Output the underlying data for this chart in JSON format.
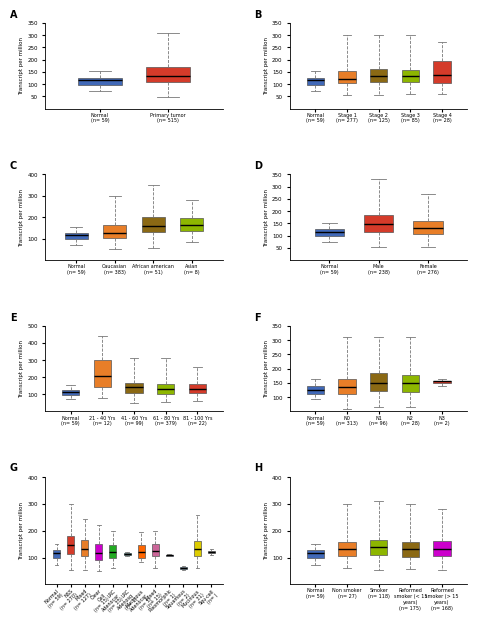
{
  "panels": {
    "A": {
      "title": "A",
      "ylabel": "Transcript per million",
      "ylim": [
        0,
        350
      ],
      "yticks": [
        50,
        100,
        150,
        200,
        250,
        300,
        350
      ],
      "groups": [
        {
          "label": "Normal\n(n= 59)",
          "color": "#4169B8",
          "whislo": 72,
          "q1": 98,
          "med": 115,
          "q3": 127,
          "whishi": 152
        },
        {
          "label": "Primary tumor\n(n= 515)",
          "color": "#D43B2A",
          "whislo": 47,
          "q1": 107,
          "med": 133,
          "q3": 168,
          "whishi": 310
        }
      ]
    },
    "B": {
      "title": "B",
      "ylabel": "Transcript per million",
      "ylim": [
        0,
        350
      ],
      "yticks": [
        50,
        100,
        150,
        200,
        250,
        300,
        350
      ],
      "groups": [
        {
          "label": "Normal\n(n= 59)",
          "color": "#4169B8",
          "whislo": 72,
          "q1": 98,
          "med": 115,
          "q3": 127,
          "whishi": 152
        },
        {
          "label": "Stage 1\n(n= 277)",
          "color": "#E87E28",
          "whislo": 55,
          "q1": 105,
          "med": 123,
          "q3": 155,
          "whishi": 300
        },
        {
          "label": "Stage 2\n(n= 125)",
          "color": "#8B6914",
          "whislo": 55,
          "q1": 107,
          "med": 133,
          "q3": 163,
          "whishi": 300
        },
        {
          "label": "Stage 3\n(n= 85)",
          "color": "#8DB600",
          "whislo": 58,
          "q1": 107,
          "med": 132,
          "q3": 158,
          "whishi": 300
        },
        {
          "label": "Stage 4\n(n= 28)",
          "color": "#D43B2A",
          "whislo": 60,
          "q1": 103,
          "med": 136,
          "q3": 195,
          "whishi": 270
        }
      ]
    },
    "C": {
      "title": "C",
      "ylabel": "Transcript per million",
      "ylim": [
        0,
        400
      ],
      "yticks": [
        100,
        200,
        300,
        400
      ],
      "groups": [
        {
          "label": "Normal\n(n= 59)",
          "color": "#4169B8",
          "whislo": 72,
          "q1": 98,
          "med": 115,
          "q3": 127,
          "whishi": 152
        },
        {
          "label": "Caucasian\n(n= 383)",
          "color": "#E87E28",
          "whislo": 52,
          "q1": 105,
          "med": 128,
          "q3": 162,
          "whishi": 300
        },
        {
          "label": "African american\n(n= 51)",
          "color": "#8B6914",
          "whislo": 58,
          "q1": 133,
          "med": 160,
          "q3": 200,
          "whishi": 350
        },
        {
          "label": "Asian\n(n= 8)",
          "color": "#8DB600",
          "whislo": 82,
          "q1": 135,
          "med": 162,
          "q3": 195,
          "whishi": 280
        }
      ]
    },
    "D": {
      "title": "D",
      "ylabel": "Transcript per million",
      "ylim": [
        0,
        350
      ],
      "yticks": [
        50,
        100,
        150,
        200,
        250,
        300,
        350
      ],
      "groups": [
        {
          "label": "Normal\n(n= 59)",
          "color": "#4169B8",
          "whislo": 72,
          "q1": 98,
          "med": 115,
          "q3": 127,
          "whishi": 152
        },
        {
          "label": "Male\n(n= 238)",
          "color": "#D43B2A",
          "whislo": 52,
          "q1": 115,
          "med": 148,
          "q3": 183,
          "whishi": 330
        },
        {
          "label": "Female\n(n= 276)",
          "color": "#E87E28",
          "whislo": 52,
          "q1": 107,
          "med": 131,
          "q3": 160,
          "whishi": 270
        }
      ]
    },
    "E": {
      "title": "E",
      "ylabel": "Transcript per million",
      "ylim": [
        0,
        500
      ],
      "yticks": [
        100,
        200,
        300,
        400,
        500
      ],
      "groups": [
        {
          "label": "Normal\n(n= 59)",
          "color": "#4169B8",
          "whislo": 72,
          "q1": 98,
          "med": 115,
          "q3": 127,
          "whishi": 152
        },
        {
          "label": "21 - 40 Yrs\n(n= 12)",
          "color": "#E87E28",
          "whislo": 80,
          "q1": 145,
          "med": 208,
          "q3": 300,
          "whishi": 440
        },
        {
          "label": "41 - 60 Yrs\n(n= 99)",
          "color": "#8B6914",
          "whislo": 52,
          "q1": 107,
          "med": 140,
          "q3": 165,
          "whishi": 310
        },
        {
          "label": "61 - 80 Yrs\n(n= 379)",
          "color": "#8DB600",
          "whislo": 55,
          "q1": 103,
          "med": 130,
          "q3": 158,
          "whishi": 310
        },
        {
          "label": "81 - 100 Yrs\n(n= 22)",
          "color": "#D43B2A",
          "whislo": 62,
          "q1": 107,
          "med": 133,
          "q3": 163,
          "whishi": 260
        }
      ]
    },
    "F": {
      "title": "F",
      "ylabel": "Transcript per million",
      "ylim": [
        50,
        350
      ],
      "yticks": [
        100,
        150,
        200,
        250,
        300,
        350
      ],
      "groups": [
        {
          "label": "Normal\n(n= 59)",
          "color": "#4169B8",
          "whislo": 93,
          "q1": 112,
          "med": 125,
          "q3": 140,
          "whishi": 165
        },
        {
          "label": "N0\n(n= 313)",
          "color": "#E87E28",
          "whislo": 60,
          "q1": 110,
          "med": 135,
          "q3": 165,
          "whishi": 310
        },
        {
          "label": "N1\n(n= 96)",
          "color": "#8B6914",
          "whislo": 65,
          "q1": 120,
          "med": 150,
          "q3": 185,
          "whishi": 310
        },
        {
          "label": "N2\n(n= 28)",
          "color": "#8DB600",
          "whislo": 65,
          "q1": 118,
          "med": 148,
          "q3": 178,
          "whishi": 310
        },
        {
          "label": "N3\n(n= 2)",
          "color": "#D43B2A",
          "whislo": 140,
          "q1": 148,
          "med": 155,
          "q3": 158,
          "whishi": 163
        }
      ]
    },
    "G": {
      "title": "G",
      "ylabel": "Transcript per million",
      "ylim": [
        0,
        400
      ],
      "yticks": [
        100,
        200,
        300,
        400
      ],
      "rotate_xlabels": true,
      "groups": [
        {
          "label": "Normal\n(n= 59)",
          "color": "#4169B8",
          "whislo": 72,
          "q1": 98,
          "med": 115,
          "q3": 127,
          "whishi": 152
        },
        {
          "label": "NSS\n(n= 270)",
          "color": "#D43B2A",
          "whislo": 52,
          "q1": 113,
          "med": 145,
          "q3": 182,
          "whishi": 300
        },
        {
          "label": "Mixed\n(n= 127)",
          "color": "#E87E28",
          "whislo": 55,
          "q1": 107,
          "med": 132,
          "q3": 165,
          "whishi": 245
        },
        {
          "label": "Clear\nCell\n(n= 15)",
          "color": "#CC00CC",
          "whislo": 50,
          "q1": 92,
          "med": 118,
          "q3": 150,
          "whishi": 220
        },
        {
          "label": "LRC\nAdenocar\n(n= 35)",
          "color": "#22AA22",
          "whislo": 62,
          "q1": 98,
          "med": 120,
          "q3": 148,
          "whishi": 200
        },
        {
          "label": "LRC\nAdenosq\n(n= 1)",
          "color": "#009999",
          "whislo": 105,
          "q1": 108,
          "med": 112,
          "q3": 115,
          "whishi": 120
        },
        {
          "label": "Mucinous\nAdenocar\n(n= 5)",
          "color": "#FF6600",
          "whislo": 82,
          "q1": 100,
          "med": 120,
          "q3": 148,
          "whishi": 195
        },
        {
          "label": "Mixed\n(n= 15)",
          "color": "#CC6699",
          "whislo": 60,
          "q1": 105,
          "med": 125,
          "q3": 150,
          "whishi": 200
        },
        {
          "label": "Pleomorphic\n(n= 1)",
          "color": "#4169B8",
          "whislo": 105,
          "q1": 107,
          "med": 108,
          "q3": 110,
          "whishi": 112
        },
        {
          "label": "Squamous\n(n= 2)",
          "color": "#44AAEE",
          "whislo": 55,
          "q1": 58,
          "med": 62,
          "q3": 65,
          "whishi": 68
        },
        {
          "label": "Mucinous\n(n= 31)",
          "color": "#DDCC00",
          "whislo": 62,
          "q1": 105,
          "med": 132,
          "q3": 160,
          "whishi": 260
        },
        {
          "label": "Squ-cell\n(n= )",
          "color": "#888888",
          "whislo": 110,
          "q1": 115,
          "med": 120,
          "q3": 125,
          "whishi": 130
        }
      ]
    },
    "H": {
      "title": "H",
      "ylabel": "Transcript per million",
      "ylim": [
        0,
        400
      ],
      "yticks": [
        100,
        200,
        300,
        400
      ],
      "groups": [
        {
          "label": "Normal\n(n= 59)",
          "color": "#4169B8",
          "whislo": 72,
          "q1": 98,
          "med": 115,
          "q3": 127,
          "whishi": 152
        },
        {
          "label": "Non smoker\n(n= 27)",
          "color": "#E87E28",
          "whislo": 62,
          "q1": 107,
          "med": 130,
          "q3": 158,
          "whishi": 300
        },
        {
          "label": "Smoker\n(n= 118)",
          "color": "#8DB600",
          "whislo": 52,
          "q1": 110,
          "med": 140,
          "q3": 167,
          "whishi": 310
        },
        {
          "label": "Reformed\nsmoker (< 15\nyears)\n(n= 175)",
          "color": "#8B6914",
          "whislo": 57,
          "q1": 103,
          "med": 130,
          "q3": 158,
          "whishi": 300
        },
        {
          "label": "Reformed\nsmoker (> 15\nyears)\n(n= 168)",
          "color": "#CC00CC",
          "whislo": 55,
          "q1": 105,
          "med": 130,
          "q3": 160,
          "whishi": 280
        }
      ]
    }
  },
  "panel_order": [
    "A",
    "B",
    "C",
    "D",
    "E",
    "F",
    "G",
    "H"
  ]
}
